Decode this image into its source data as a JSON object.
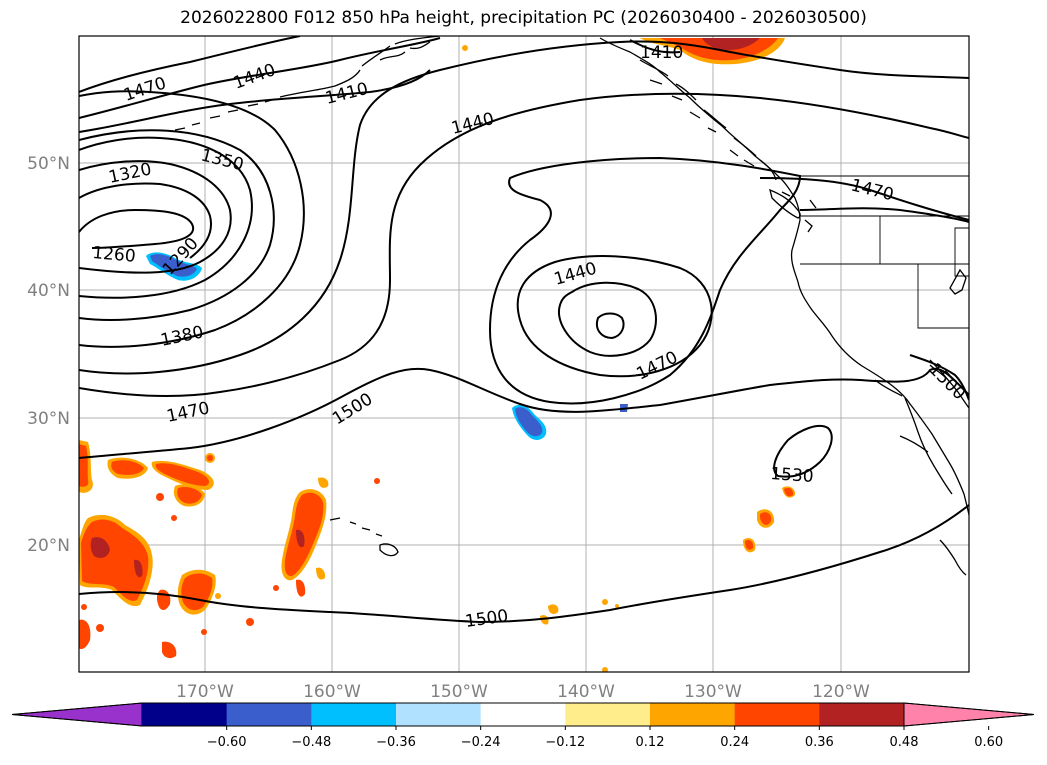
{
  "title": "2026022800 F012 850 hPa height, precipitation PC (2026030400 - 2026030500)",
  "map": {
    "lat_labels": [
      "50°N",
      "40°N",
      "30°N",
      "20°N"
    ],
    "lon_labels": [
      "170°W",
      "160°W",
      "150°W",
      "140°W",
      "130°W",
      "120°W"
    ],
    "contour_labels": [
      {
        "text": "1470"
      },
      {
        "text": "1440"
      },
      {
        "text": "1410"
      },
      {
        "text": "1440"
      },
      {
        "text": "1410"
      },
      {
        "text": "1320"
      },
      {
        "text": "1350"
      },
      {
        "text": "1260"
      },
      {
        "text": "1290"
      },
      {
        "text": "1440"
      },
      {
        "text": "1470"
      },
      {
        "text": "1380"
      },
      {
        "text": "1470"
      },
      {
        "text": "1500"
      },
      {
        "text": "1470"
      },
      {
        "text": "1500"
      },
      {
        "text": "1530"
      },
      {
        "text": "1500"
      }
    ]
  },
  "colorbar": {
    "ticks": [
      "−0.60",
      "−0.48",
      "−0.36",
      "−0.24",
      "−0.12",
      "0.12",
      "0.24",
      "0.36",
      "0.48",
      "0.60"
    ],
    "colors": [
      "#9932cc",
      "#00008b",
      "#3a5fcd",
      "#00bfff",
      "#b0e2ff",
      "#ffffff",
      "#ffec8b",
      "#ffa500",
      "#ff4500",
      "#b22222",
      "#ff82ab"
    ]
  }
}
